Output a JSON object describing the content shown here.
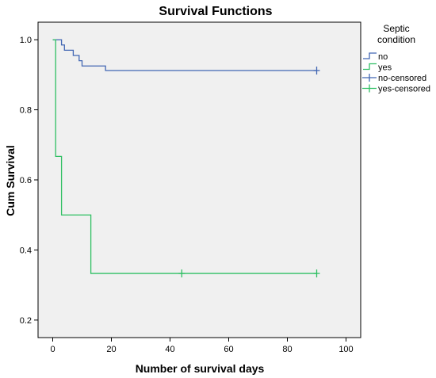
{
  "chart_data": {
    "type": "line",
    "title": "Survival Functions",
    "xlabel": "Number of survival days",
    "ylabel": "Cum Survival",
    "xlim": [
      -5,
      105
    ],
    "ylim": [
      0.15,
      1.05
    ],
    "xticks": [
      0,
      20,
      40,
      60,
      80,
      100
    ],
    "yticks": [
      0.2,
      0.4,
      0.6,
      0.8,
      1.0
    ],
    "xtick_labels": [
      "0",
      "20",
      "40",
      "60",
      "80",
      "100"
    ],
    "ytick_labels": [
      "0.2",
      "0.4",
      "0.6",
      "0.8",
      "1.0"
    ],
    "grid": false,
    "legend_title": [
      "Septic",
      "condition"
    ],
    "legend_position": "right",
    "legend": [
      {
        "label": "no",
        "kind": "step",
        "color": "#4166b3"
      },
      {
        "label": "yes",
        "kind": "step",
        "color": "#2fbf63"
      },
      {
        "label": "no-censored",
        "kind": "censor",
        "color": "#4166b3"
      },
      {
        "label": "yes-censored",
        "kind": "censor",
        "color": "#2fbf63"
      }
    ],
    "series": [
      {
        "name": "no",
        "color": "#4166b3",
        "step": true,
        "x": [
          0,
          2,
          3,
          4,
          7,
          9,
          10,
          18,
          90
        ],
        "y": [
          1.0,
          1.0,
          0.985,
          0.97,
          0.955,
          0.94,
          0.925,
          0.912,
          0.912
        ],
        "censored": [
          {
            "x": 90,
            "y": 0.912
          }
        ]
      },
      {
        "name": "yes",
        "color": "#2fbf63",
        "step": true,
        "x": [
          0,
          1,
          3,
          13,
          90
        ],
        "y": [
          1.0,
          0.667,
          0.5,
          0.333,
          0.333
        ],
        "censored": [
          {
            "x": 44,
            "y": 0.333
          },
          {
            "x": 90,
            "y": 0.333
          }
        ]
      }
    ]
  }
}
